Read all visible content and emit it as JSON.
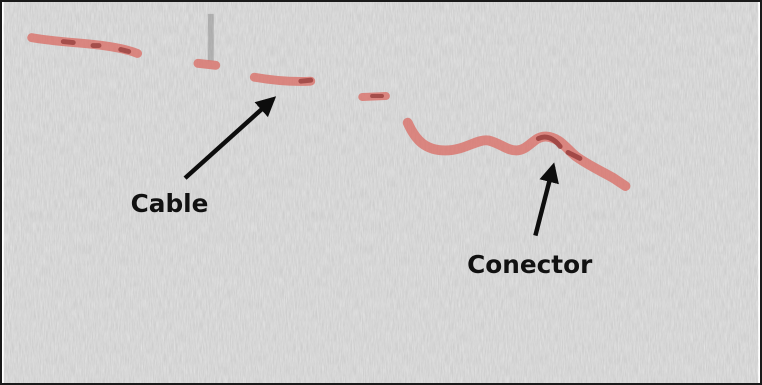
{
  "image": {
    "kind": "sonar / ground-penetrating scan image",
    "background_color": "#c9c9c9",
    "trace_color": "#d97770",
    "trace_core_color": "#9a3a38",
    "arrow_color": "#0d0d0d"
  },
  "annotations": {
    "cable_label": "Cable",
    "connector_label": "Conector"
  }
}
